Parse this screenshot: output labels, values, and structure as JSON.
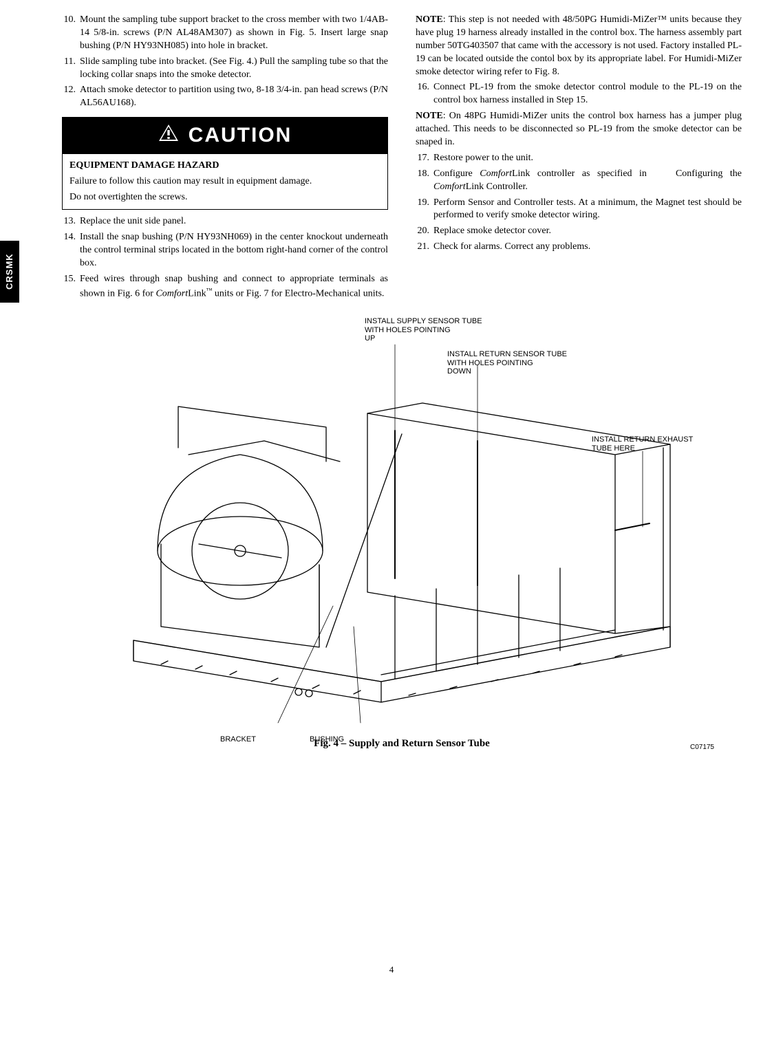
{
  "sideTab": "CRSMK",
  "leftCol": {
    "stepsA": [
      {
        "n": "10.",
        "t": "Mount the sampling tube support bracket to the cross member with two 1/4AB-14 5/8-in. screws (P/N AL48AM307) as shown in Fig. 5. Insert large snap bushing (P/N HY93NH085) into hole in bracket."
      },
      {
        "n": "11.",
        "t": "Slide sampling tube into bracket. (See Fig. 4.) Pull the sampling tube so that the locking collar snaps into the smoke  detector."
      },
      {
        "n": "12.",
        "t": "Attach smoke detector to partition using two, 8-18 3/4-in. pan head screws (P/N AL56AU168)."
      }
    ],
    "caution": {
      "header": "CAUTION",
      "heading": "EQUIPMENT DAMAGE HAZARD",
      "body1": "Failure to follow this caution may result in equipment damage.",
      "body2": "Do not overtighten the screws."
    },
    "stepsB": [
      {
        "n": "13.",
        "t": "Replace the unit side panel."
      },
      {
        "n": "14.",
        "t": "Install the snap bushing (P/N HY93NH069) in the center knockout underneath the control terminal strips located in the bottom right-hand corner of the control box."
      },
      {
        "n": "15.",
        "t": "Feed wires through snap bushing and connect to appropriate terminals as shown in Fig. 6 for ComfortLink™ units or Fig. 7 for Electro-Mechanical units."
      }
    ]
  },
  "rightCol": {
    "note1": "NOTE:  This step is not needed with 48/50PG Humidi-MiZer™ units because they have plug 19 harness already installed in the control box. The harness assembly part number 50TG403507 that came with the accessory is not used.  Factory installed PL-19 can be located outside the contol box by its appropriate label.  For Humidi-MiZer smoke detector wiring refer to Fig. 8.",
    "stepsC": [
      {
        "n": "16.",
        "t": "Connect PL-19 from the smoke detector control module to the PL-19 on the control box harness installed in Step 15."
      }
    ],
    "note2": "NOTE:  On 48PG Humidi-MiZer units the control box harness has a jumper plug attached.  This needs to be disconnected so PL-19 from the smoke detector can be snaped in.",
    "stepsD": [
      {
        "n": "17.",
        "t": "Restore power to the unit."
      },
      {
        "n": "18.",
        "t": "Configure ComfortLink controller as specified in    Configuring the ComfortLink Controller."
      },
      {
        "n": "19.",
        "t": "Perform Sensor and Controller tests. At a minimum, the Magnet test should be performed to verify smoke detector wiring."
      },
      {
        "n": "20.",
        "t": "Replace smoke detector cover."
      },
      {
        "n": "21.",
        "t": "Check for alarms. Correct any problems."
      }
    ]
  },
  "figure": {
    "labels": {
      "supply": "INSTALL SUPPLY SENSOR TUBE\nWITH HOLES POINTING\nUP",
      "return": "INSTALL RETURN SENSOR TUBE\nWITH HOLES POINTING\nDOWN",
      "exhaust": "INSTALL RETURN EXHAUST\nTUBE HERE",
      "bracket": "BRACKET",
      "bushing": "BUSHING"
    },
    "caption": "Fig. 4 – Supply and Return Sensor Tube",
    "code": "C07175"
  },
  "pageNum": "4"
}
